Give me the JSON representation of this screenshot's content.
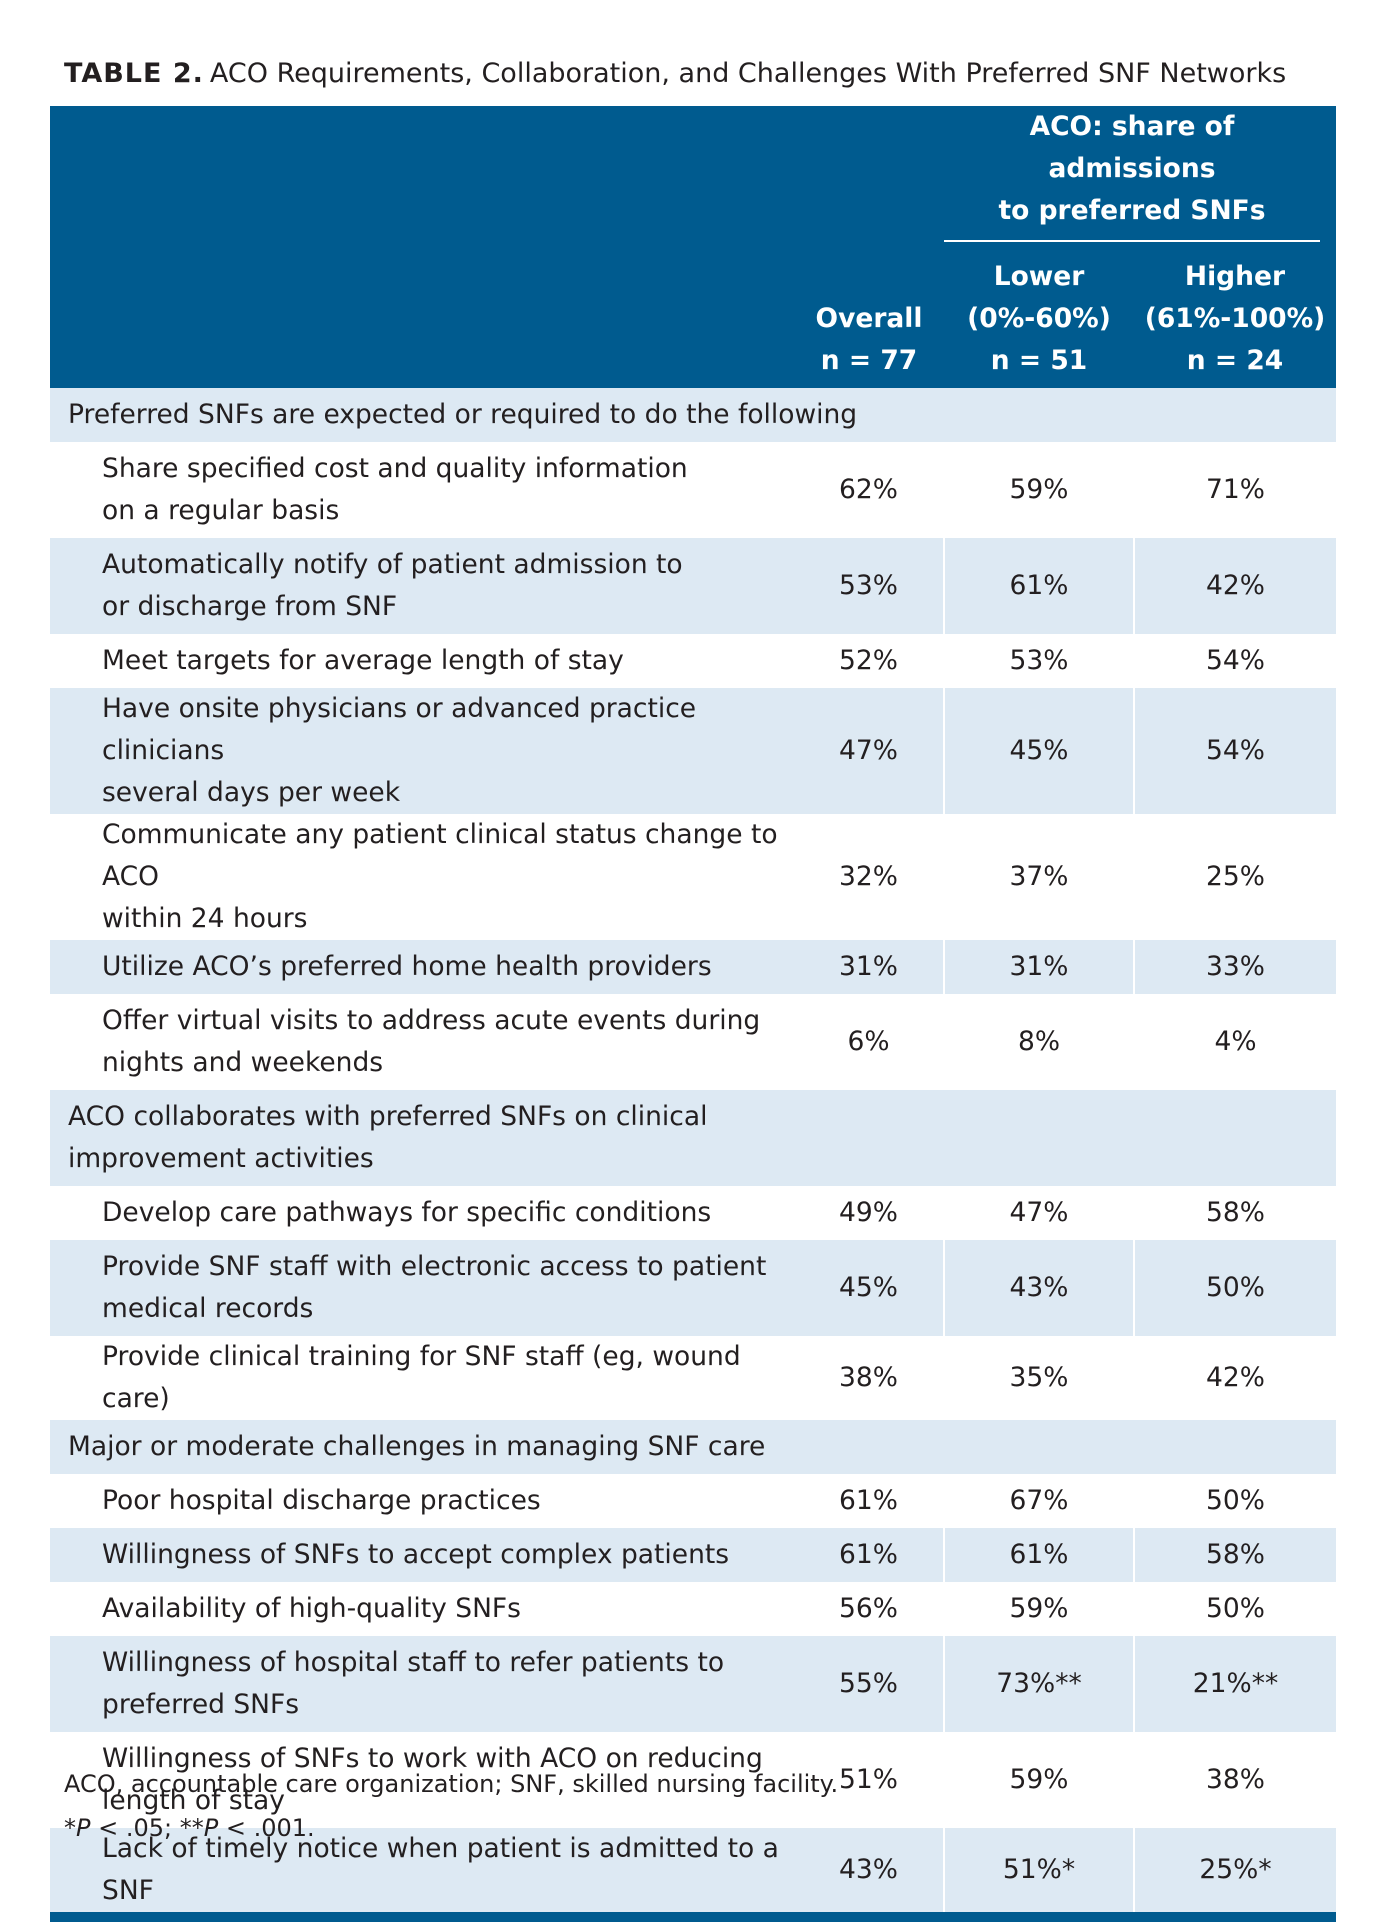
{
  "caption": {
    "label": "TABLE 2.",
    "title": "ACO Requirements, Collaboration, and Challenges With Preferred SNF Networks"
  },
  "header": {
    "group_line1": "ACO: share of admissions",
    "group_line2": "to preferred SNFs",
    "overall": {
      "line1": "Overall",
      "line2": "n = 77"
    },
    "lower": {
      "line1": "Lower",
      "line2": "(0%-60%)",
      "line3": "n = 51"
    },
    "higher": {
      "line1": "Higher",
      "line2": "(61%-100%)",
      "line3": "n = 24"
    }
  },
  "sections": [
    {
      "title": "Preferred SNFs are expected or required to do the following",
      "rows": [
        {
          "label_1": "Share specified cost and quality information",
          "label_2": "on a regular basis",
          "overall": "62%",
          "lower": "59%",
          "higher": "71%"
        },
        {
          "label_1": "Automatically notify of patient admission to",
          "label_2": "or discharge from SNF",
          "overall": "53%",
          "lower": "61%",
          "higher": "42%"
        },
        {
          "label_1": "Meet targets for average length of stay",
          "overall": "52%",
          "lower": "53%",
          "higher": "54%"
        },
        {
          "label_1": "Have onsite physicians or advanced practice clinicians",
          "label_2": "several days per week",
          "overall": "47%",
          "lower": "45%",
          "higher": "54%"
        },
        {
          "label_1": "Communicate any patient clinical status change to ACO",
          "label_2": "within 24 hours",
          "overall": "32%",
          "lower": "37%",
          "higher": "25%"
        },
        {
          "label_1": "Utilize ACO’s preferred home health providers",
          "overall": "31%",
          "lower": "31%",
          "higher": "33%"
        },
        {
          "label_1": "Offer virtual visits to address acute events during",
          "label_2": "nights and weekends",
          "overall": "6%",
          "lower": "8%",
          "higher": "4%"
        }
      ]
    },
    {
      "title_1": "ACO collaborates with preferred SNFs on clinical",
      "title_2": "improvement activities",
      "rows": [
        {
          "label_1": "Develop care pathways for specific conditions",
          "overall": "49%",
          "lower": "47%",
          "higher": "58%"
        },
        {
          "label_1": "Provide SNF staff with electronic access to patient",
          "label_2": "medical records",
          "overall": "45%",
          "lower": "43%",
          "higher": "50%"
        },
        {
          "label_1": "Provide clinical training for SNF staff (eg, wound care)",
          "overall": "38%",
          "lower": "35%",
          "higher": "42%"
        }
      ]
    },
    {
      "title": "Major or moderate challenges in managing SNF care",
      "rows": [
        {
          "label_1": "Poor hospital discharge practices",
          "overall": "61%",
          "lower": "67%",
          "higher": "50%"
        },
        {
          "label_1": "Willingness of SNFs to accept complex patients",
          "overall": "61%",
          "lower": "61%",
          "higher": "58%"
        },
        {
          "label_1": "Availability of high-quality SNFs",
          "overall": "56%",
          "lower": "59%",
          "higher": "50%"
        },
        {
          "label_1": "Willingness of hospital staff to refer patients to",
          "label_2": "preferred SNFs",
          "overall": "55%",
          "lower": "73%**",
          "higher": "21%**"
        },
        {
          "label_1": "Willingness of SNFs to work with ACO on reducing",
          "label_2": "length of stay",
          "overall": "51%",
          "lower": "59%",
          "higher": "38%"
        },
        {
          "label_1": "Lack of timely notice when patient is admitted to a SNF",
          "overall": "43%",
          "lower": "51%*",
          "higher": "25%*"
        }
      ]
    }
  ],
  "footnotes": {
    "abbrev": "ACO, accountable care organization; SNF, skilled nursing facility.",
    "sig_1_mark": "*",
    "sig_1_p": "P",
    "sig_1_val": " < .05; ",
    "sig_2_mark": "**",
    "sig_2_p": "P",
    "sig_2_val": " < .001."
  }
}
